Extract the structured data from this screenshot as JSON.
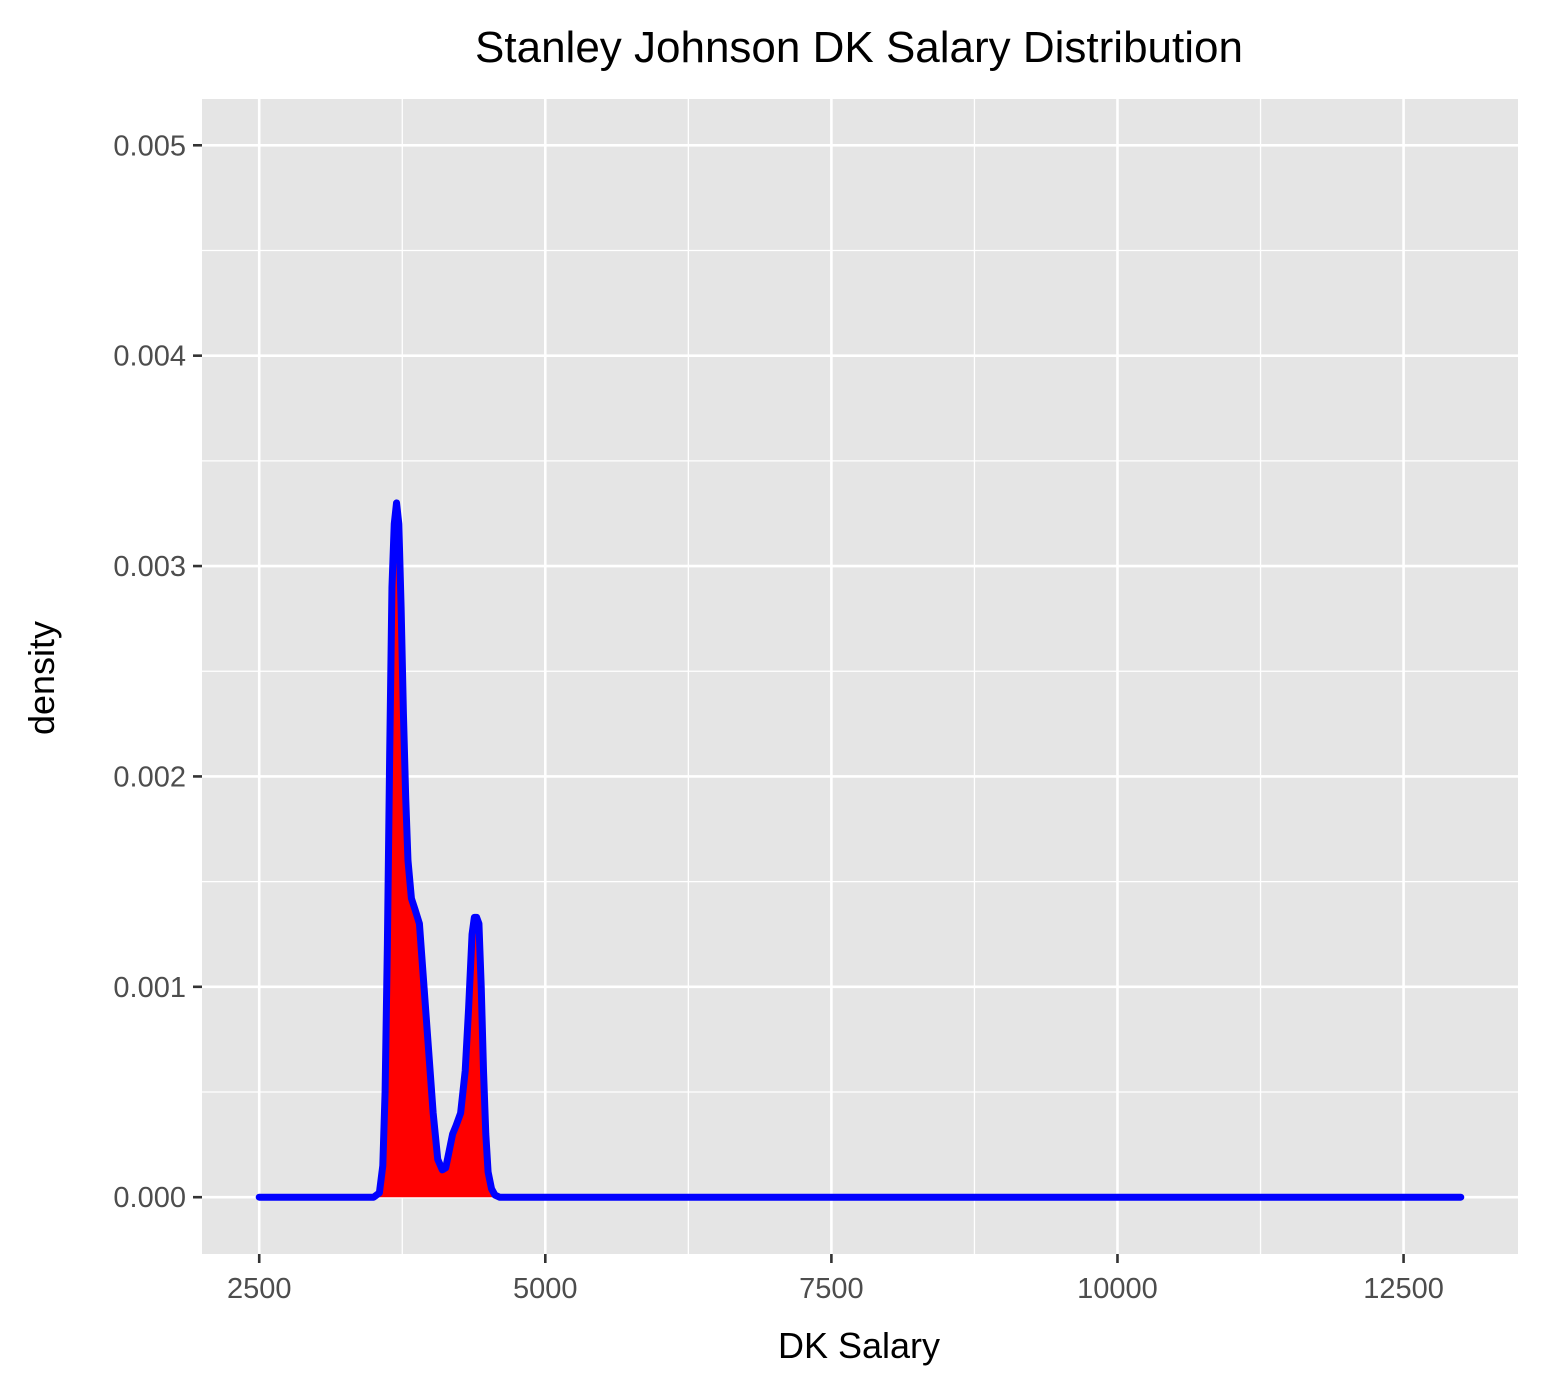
{
  "chart_data": {
    "type": "area",
    "title": "Stanley Johnson DK Salary Distribution",
    "xlabel": "DK Salary",
    "ylabel": "density",
    "xlim": [
      2000,
      13500
    ],
    "ylim": [
      -0.00027,
      0.00522
    ],
    "x_ticks": [
      2500,
      5000,
      7500,
      10000,
      12500
    ],
    "x_tick_labels": [
      "2500",
      "5000",
      "7500",
      "10000",
      "12500"
    ],
    "y_ticks": [
      0,
      0.001,
      0.002,
      0.003,
      0.004,
      0.005
    ],
    "y_tick_labels": [
      "0.000",
      "0.001",
      "0.002",
      "0.003",
      "0.004",
      "0.005"
    ],
    "grid": true,
    "legend": "none",
    "fill_color": "#ff0000",
    "line_color": "#0000ff",
    "panel_color": "#e5e5e5",
    "grid_color": "#ffffff",
    "series": [
      {
        "x": [
          2500,
          3500,
          3550,
          3580,
          3600,
          3620,
          3640,
          3660,
          3680,
          3700,
          3720,
          3740,
          3760,
          3780,
          3800,
          3830,
          3860,
          3900,
          3940,
          3980,
          4020,
          4060,
          4100,
          4130,
          4160,
          4190,
          4220,
          4260,
          4300,
          4330,
          4360,
          4380,
          4400,
          4420,
          4440,
          4460,
          4480,
          4500,
          4530,
          4560,
          4600,
          5000,
          7500,
          10000,
          13000
        ],
        "y": [
          0,
          0,
          2e-05,
          0.00015,
          0.0005,
          0.0012,
          0.0021,
          0.0029,
          0.0032,
          0.0033,
          0.0032,
          0.0028,
          0.0023,
          0.0019,
          0.0016,
          0.00142,
          0.00137,
          0.0013,
          0.001,
          0.0007,
          0.0004,
          0.00018,
          0.00013,
          0.00014,
          0.00022,
          0.0003,
          0.00034,
          0.0004,
          0.0006,
          0.0009,
          0.00125,
          0.00133,
          0.00133,
          0.0013,
          0.001,
          0.0006,
          0.0003,
          0.00012,
          4e-05,
          1e-05,
          0,
          0,
          0,
          0,
          0
        ]
      }
    ]
  }
}
